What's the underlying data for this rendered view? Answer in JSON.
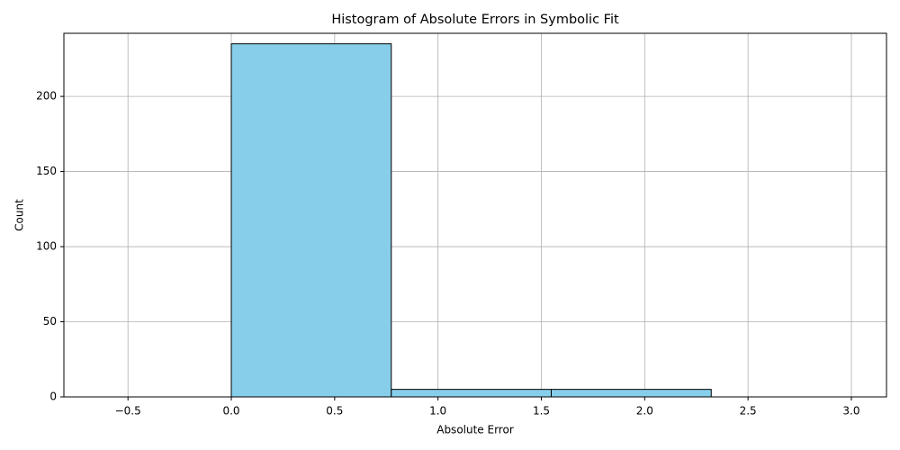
{
  "chart_data": {
    "type": "histogram",
    "title": "Histogram of Absolute Errors in Symbolic Fit",
    "x_label": "Absolute Error",
    "y_label": "Count",
    "bins": [
      0,
      0.774,
      1.548,
      2.322,
      3.096
    ],
    "values": [
      235,
      5,
      5,
      0
    ],
    "color": "#87ceeb",
    "edgecolor": "#000000",
    "xlim": [
      -0.81,
      3.17
    ],
    "ylim": [
      0,
      242
    ],
    "xticks": [
      {
        "value": -0.5,
        "label": "−0.5"
      },
      {
        "value": 0,
        "label": "0.0"
      },
      {
        "value": 0.5,
        "label": "0.5"
      },
      {
        "value": 1,
        "label": "1.0"
      },
      {
        "value": 1.5,
        "label": "1.5"
      },
      {
        "value": 2,
        "label": "2.0"
      },
      {
        "value": 2.5,
        "label": "2.5"
      },
      {
        "value": 3,
        "label": "3.0"
      }
    ],
    "yticks": [
      0,
      50,
      100,
      150,
      200
    ],
    "grid": true
  }
}
